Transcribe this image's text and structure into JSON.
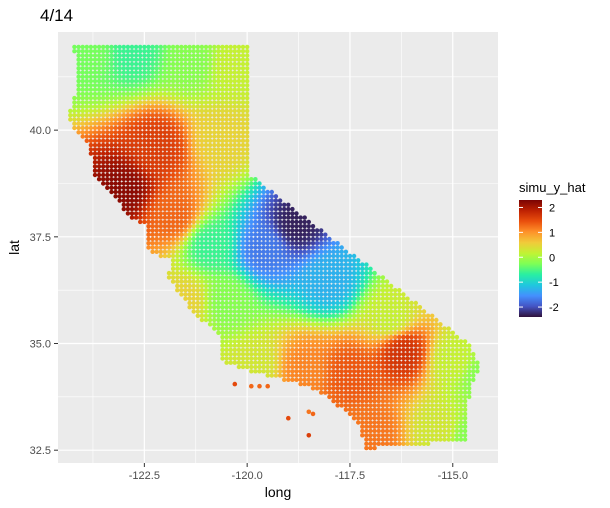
{
  "chart_data": {
    "type": "scatter",
    "title": "4/14",
    "xlabel": "long",
    "ylabel": "lat",
    "xlim": [
      -124.6,
      -113.9
    ],
    "ylim": [
      32.2,
      42.3
    ],
    "x_ticks": [
      -122.5,
      -120.0,
      -117.5,
      -115.0
    ],
    "x_tick_labels": [
      "-122.5",
      "-120.0",
      "-117.5",
      "-115.0"
    ],
    "y_ticks": [
      32.5,
      35.0,
      37.5,
      40.0
    ],
    "y_tick_labels": [
      "32.5",
      "35.0",
      "37.5",
      "40.0"
    ],
    "grid": true,
    "background": "#ebebeb",
    "legend": {
      "title": "simu_y_hat",
      "placement": "right",
      "range": [
        -2.4,
        2.3
      ],
      "ticks": [
        2,
        1,
        0,
        -1,
        -2
      ],
      "tick_labels": [
        "2",
        "1",
        "0",
        "-1",
        "-2"
      ],
      "colormap": [
        "#30123b",
        "#4454c4",
        "#4490fe",
        "#1fc8de",
        "#29efa2",
        "#7dff56",
        "#c1f334",
        "#f1ca3a",
        "#fe922a",
        "#ea4f0d",
        "#be2102",
        "#7a0403"
      ]
    },
    "field": {
      "description_of_value_pattern": "interpolated surface of simu_y_hat over California grid points",
      "control_points": [
        {
          "long": -123.0,
          "lat": 38.6,
          "value": 2.2
        },
        {
          "long": -122.2,
          "lat": 39.6,
          "value": 1.6
        },
        {
          "long": -121.8,
          "lat": 38.0,
          "value": 1.3
        },
        {
          "long": -123.8,
          "lat": 41.8,
          "value": -0.3
        },
        {
          "long": -122.8,
          "lat": 41.8,
          "value": -0.6
        },
        {
          "long": -121.3,
          "lat": 41.6,
          "value": -0.2
        },
        {
          "long": -120.4,
          "lat": 41.5,
          "value": 0.2
        },
        {
          "long": -120.6,
          "lat": 39.8,
          "value": 0.5
        },
        {
          "long": -120.9,
          "lat": 37.3,
          "value": -0.6
        },
        {
          "long": -120.5,
          "lat": 36.0,
          "value": -0.2
        },
        {
          "long": -121.5,
          "lat": 36.0,
          "value": 0.5
        },
        {
          "long": -118.8,
          "lat": 37.8,
          "value": -2.3
        },
        {
          "long": -119.6,
          "lat": 37.2,
          "value": -1.7
        },
        {
          "long": -118.0,
          "lat": 36.5,
          "value": -1.3
        },
        {
          "long": -116.5,
          "lat": 35.6,
          "value": 0.2
        },
        {
          "long": -115.0,
          "lat": 34.6,
          "value": 0.2
        },
        {
          "long": -114.3,
          "lat": 34.2,
          "value": -0.2
        },
        {
          "long": -117.5,
          "lat": 34.3,
          "value": 1.4
        },
        {
          "long": -116.2,
          "lat": 34.8,
          "value": 1.7
        },
        {
          "long": -118.6,
          "lat": 34.4,
          "value": 1.1
        },
        {
          "long": -119.8,
          "lat": 34.5,
          "value": 0.3
        },
        {
          "long": -117.0,
          "lat": 32.9,
          "value": 1.2
        },
        {
          "long": -115.3,
          "lat": 33.0,
          "value": 0.3
        },
        {
          "long": -114.6,
          "lat": 32.8,
          "value": -0.2
        }
      ]
    },
    "islands": [
      {
        "long": -119.9,
        "lat": 34.0,
        "value": 1.3
      },
      {
        "long": -119.7,
        "lat": 34.0,
        "value": 1.3
      },
      {
        "long": -119.5,
        "lat": 34.0,
        "value": 1.3
      },
      {
        "long": -120.3,
        "lat": 34.05,
        "value": 1.5
      },
      {
        "long": -118.5,
        "lat": 33.4,
        "value": 1.2
      },
      {
        "long": -118.4,
        "lat": 33.35,
        "value": 1.3
      },
      {
        "long": -119.0,
        "lat": 33.25,
        "value": 1.5
      },
      {
        "long": -118.5,
        "lat": 32.85,
        "value": 1.6
      }
    ]
  }
}
